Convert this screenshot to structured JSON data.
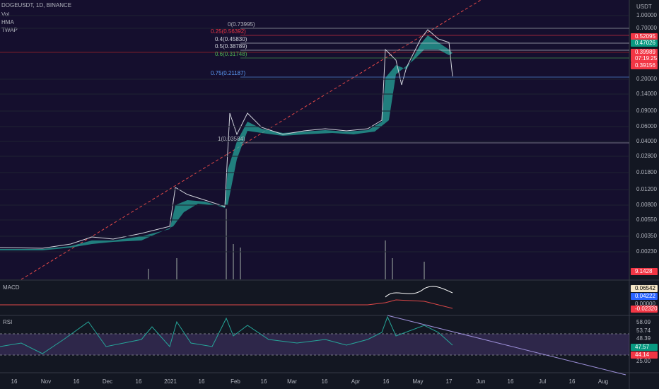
{
  "header": {
    "symbol": "DOGEUSDT, 1D, BINANCE",
    "indicators": [
      "Vol",
      "HMA",
      "TWAP"
    ]
  },
  "price_axis": {
    "unit": "USDT",
    "ticks": [
      "1.00000",
      "0.70000",
      "0.20000",
      "0.14000",
      "0.09000",
      "0.06000",
      "0.04000",
      "0.02800",
      "0.01800",
      "0.01200",
      "0.00800",
      "0.00550",
      "0.00350",
      "0.00230"
    ],
    "badges": [
      "0.52095",
      "0.47026",
      "0.39989",
      "07:19:25",
      "0.39156"
    ],
    "volume_badge": "9.1428"
  },
  "fib_levels": [
    "0(0.73995)",
    "0.25(0.56392)",
    "0.4(0.45830)",
    "0.5(0.38789)",
    "0.6(0.31748)",
    "0.75(0.21187)",
    "1(0.03584)"
  ],
  "macd": {
    "label": "MACD",
    "badges": [
      "0.06542",
      "0.04222",
      "0.00000",
      "-0.02320"
    ]
  },
  "rsi": {
    "label": "RSI",
    "ticks": [
      "58.09",
      "53.74",
      "48.39",
      "47.57",
      "44.14",
      "25.00"
    ]
  },
  "time_axis": [
    "16",
    "Nov",
    "16",
    "Dec",
    "16",
    "2021",
    "16",
    "Feb",
    "16",
    "Mar",
    "16",
    "Apr",
    "16",
    "May",
    "17",
    "Jun",
    "16",
    "Jul",
    "16",
    "Aug"
  ]
}
